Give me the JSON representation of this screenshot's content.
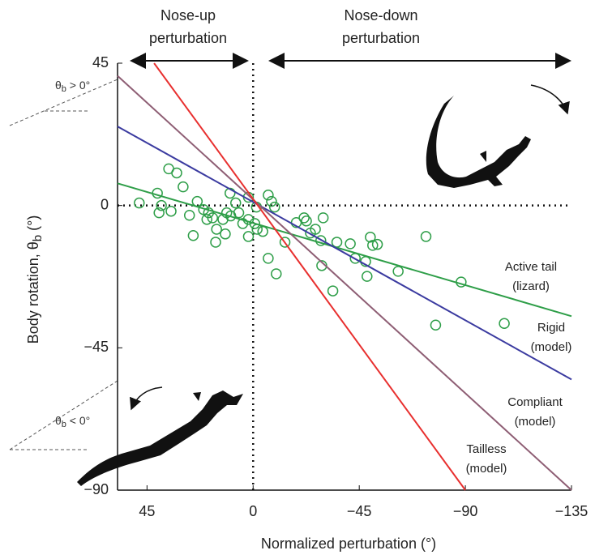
{
  "chart_data": {
    "type": "scatter",
    "header_left": [
      "Nose-up",
      "perturbation"
    ],
    "header_right": [
      "Nose-down",
      "perturbation"
    ],
    "xlabel": "Normalized perturbation (°)",
    "ylabel": [
      "Body rotation, θ",
      "b",
      " (°)"
    ],
    "annotation_up": [
      "θ",
      "b",
      " > 0°"
    ],
    "annotation_down": [
      "θ",
      "b",
      " < 0°"
    ],
    "xlim": [
      57.5,
      -135
    ],
    "ylim": [
      -90,
      45
    ],
    "xticks": [
      45,
      0,
      {
        "value": -45,
        "label": "−45"
      },
      {
        "value": -90,
        "label": "−90"
      },
      {
        "value": -135,
        "label": "−135"
      }
    ],
    "yticks": [
      45,
      0,
      {
        "value": -45,
        "label": "−45"
      },
      {
        "value": -90,
        "label": "−90"
      }
    ],
    "scatter": {
      "color": "#2e9e48",
      "x": [
        35.8,
        32.4,
        29.7,
        40.6,
        48.3,
        38.9,
        39.9,
        34.8,
        27.0,
        25.4,
        23.7,
        21.0,
        18.9,
        19.6,
        17.2,
        15.5,
        15.9,
        11.8,
        12.8,
        9.5,
        6.1,
        7.4,
        9.8,
        4.4,
        2.0,
        2.0,
        -0.7,
        -1.7,
        -4.1,
        -6.4,
        -7.8,
        -9.1,
        -6.4,
        -9.8,
        -13.5,
        -18.3,
        -21.6,
        -22.6,
        -24.3,
        -28.7,
        -29.7,
        -26.4,
        -29.1,
        -33.8,
        -35.5,
        -41.2,
        -43.3,
        -48.3,
        -49.7,
        -50.7,
        -52.7,
        -47.7,
        -61.5,
        -73.3,
        -77.4,
        -88.2,
        -106.5,
        2.0,
        -1.4,
        11.2
      ],
      "values": [
        11.6,
        10.3,
        5.9,
        3.9,
        0.8,
        0,
        -2.3,
        -1.8,
        -3.1,
        -9.5,
        1.3,
        -1.3,
        -2.3,
        -4.4,
        -3.9,
        -7.5,
        -11.6,
        -9.0,
        -4.4,
        -3.3,
        -2.3,
        0.8,
        3.9,
        -5.7,
        -9.8,
        -4.4,
        -5.7,
        -7.5,
        -8.2,
        3.3,
        1.3,
        -0.5,
        -16.7,
        -21.6,
        -11.6,
        -5.4,
        -3.9,
        -4.9,
        -8.7,
        -11.1,
        -3.9,
        -7.5,
        -19.0,
        -27.0,
        -11.6,
        -12.1,
        -16.7,
        -22.4,
        -10.0,
        -12.6,
        -12.3,
        -17.7,
        -20.8,
        -9.8,
        -37.8,
        -24.2,
        -37.3,
        2.6,
        -0.5,
        -2.3
      ]
    },
    "lines": [
      {
        "name": [
          "Active tail",
          "(lizard)"
        ],
        "color": "#2e9e48",
        "x": [
          57.5,
          -135
        ],
        "values": [
          7,
          -35
        ]
      },
      {
        "name": [
          "Rigid",
          "(model)"
        ],
        "color": "#3b3ba0",
        "x": [
          57.5,
          -135
        ],
        "values": [
          25,
          -55
        ]
      },
      {
        "name": [
          "Compliant",
          "(model)"
        ],
        "color": "#8e5e74",
        "x": [
          57.5,
          -135
        ],
        "values": [
          41,
          -90
        ]
      },
      {
        "name": [
          "Tailless",
          "(model)"
        ],
        "color": "#e8302f",
        "x": [
          42,
          -90
        ],
        "values": [
          45,
          -90
        ]
      }
    ]
  }
}
